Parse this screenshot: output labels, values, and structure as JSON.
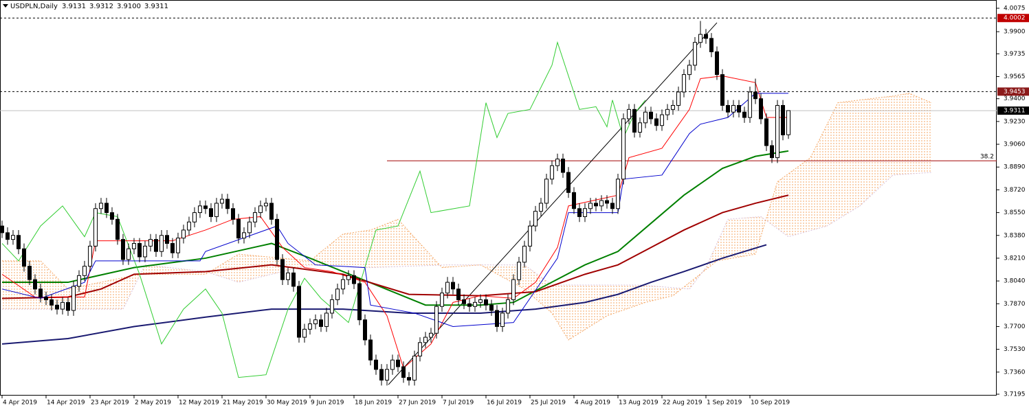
{
  "chart_data": {
    "type": "candlestick",
    "title": "USDPLN,Daily",
    "last_bar_labels": [
      "3.9131",
      "3.9312",
      "3.9100",
      "3.9311"
    ],
    "up_color": "#ffffff",
    "down_color": "#000000",
    "open": [
      3.845,
      3.84,
      3.835,
      3.838,
      3.828,
      3.815,
      3.805,
      3.798,
      3.792,
      3.79,
      3.786,
      3.783,
      3.788,
      3.782,
      3.8,
      3.808,
      3.815,
      3.83,
      3.858,
      3.862,
      3.855,
      3.85,
      3.835,
      3.82,
      3.828,
      3.832,
      3.822,
      3.83,
      3.835,
      3.826,
      3.838,
      3.832,
      3.825,
      3.836,
      3.842,
      3.848,
      3.855,
      3.86,
      3.858,
      3.852,
      3.862,
      3.865,
      3.858,
      3.85,
      3.836,
      3.84,
      3.848,
      3.855,
      3.86,
      3.862,
      3.85,
      3.82,
      3.805,
      3.81,
      3.8,
      3.762,
      3.768,
      3.772,
      3.775,
      3.77,
      3.78,
      3.79,
      3.798,
      3.805,
      3.808,
      3.802,
      3.775,
      3.76,
      3.745,
      3.738,
      3.73,
      3.738,
      3.745,
      3.74,
      3.732,
      3.73,
      3.748,
      3.758,
      3.762,
      3.765,
      3.785,
      3.795,
      3.803,
      3.798,
      3.79,
      3.787,
      3.785,
      3.788,
      3.79,
      3.786,
      3.782,
      3.77,
      3.78,
      3.79,
      3.805,
      3.818,
      3.83,
      3.845,
      3.856,
      3.862,
      3.88,
      3.89,
      3.895,
      3.885,
      3.87,
      3.858,
      3.852,
      3.858,
      3.862,
      3.86,
      3.864,
      3.862,
      3.858,
      3.88,
      3.925,
      3.932,
      3.915,
      3.922,
      3.93,
      3.925,
      3.92,
      3.928,
      3.932,
      3.935,
      3.945,
      3.958,
      3.965,
      3.982,
      3.988,
      3.985,
      3.975,
      3.958,
      3.935,
      3.93,
      3.935,
      3.93,
      3.926,
      3.945,
      3.94,
      3.925,
      3.905,
      3.896,
      3.935,
      3.9131
    ],
    "high": [
      3.849,
      3.844,
      3.842,
      3.842,
      3.832,
      3.819,
      3.809,
      3.802,
      3.796,
      3.794,
      3.79,
      3.792,
      3.792,
      3.804,
      3.812,
      3.819,
      3.834,
      3.862,
      3.866,
      3.866,
      3.859,
      3.854,
      3.839,
      3.832,
      3.836,
      3.836,
      3.834,
      3.839,
      3.839,
      3.842,
      3.842,
      3.836,
      3.84,
      3.846,
      3.852,
      3.859,
      3.864,
      3.864,
      3.862,
      3.866,
      3.869,
      3.869,
      3.862,
      3.854,
      3.844,
      3.852,
      3.859,
      3.864,
      3.866,
      3.866,
      3.854,
      3.824,
      3.814,
      3.814,
      3.804,
      3.772,
      3.776,
      3.779,
      3.779,
      3.784,
      3.794,
      3.802,
      3.809,
      3.812,
      3.812,
      3.806,
      3.779,
      3.764,
      3.749,
      3.742,
      3.742,
      3.749,
      3.749,
      3.744,
      3.736,
      3.752,
      3.762,
      3.766,
      3.769,
      3.789,
      3.799,
      3.807,
      3.807,
      3.802,
      3.794,
      3.791,
      3.792,
      3.794,
      3.794,
      3.79,
      3.786,
      3.784,
      3.794,
      3.809,
      3.822,
      3.834,
      3.849,
      3.86,
      3.866,
      3.884,
      3.894,
      3.899,
      3.899,
      3.889,
      3.874,
      3.862,
      3.862,
      3.866,
      3.866,
      3.868,
      3.868,
      3.866,
      3.884,
      3.929,
      3.936,
      3.936,
      3.926,
      3.934,
      3.934,
      3.929,
      3.932,
      3.936,
      3.939,
      3.949,
      3.962,
      3.969,
      3.986,
      3.998,
      3.992,
      3.989,
      3.979,
      3.962,
      3.939,
      3.939,
      3.939,
      3.934,
      3.949,
      3.955,
      3.944,
      3.929,
      3.909,
      3.939,
      3.939,
      3.9312
    ],
    "low": [
      3.836,
      3.831,
      3.831,
      3.824,
      3.811,
      3.801,
      3.794,
      3.788,
      3.786,
      3.782,
      3.779,
      3.779,
      3.778,
      3.778,
      3.796,
      3.804,
      3.811,
      3.826,
      3.854,
      3.851,
      3.846,
      3.831,
      3.816,
      3.816,
      3.824,
      3.818,
      3.818,
      3.826,
      3.822,
      3.822,
      3.828,
      3.821,
      3.821,
      3.832,
      3.838,
      3.844,
      3.851,
      3.854,
      3.848,
      3.848,
      3.858,
      3.854,
      3.846,
      3.832,
      3.832,
      3.836,
      3.844,
      3.851,
      3.856,
      3.846,
      3.816,
      3.801,
      3.801,
      3.796,
      3.758,
      3.758,
      3.764,
      3.768,
      3.766,
      3.766,
      3.776,
      3.786,
      3.794,
      3.801,
      3.798,
      3.771,
      3.756,
      3.741,
      3.734,
      3.726,
      3.726,
      3.734,
      3.736,
      3.728,
      3.726,
      3.726,
      3.744,
      3.754,
      3.758,
      3.761,
      3.781,
      3.791,
      3.794,
      3.786,
      3.783,
      3.781,
      3.781,
      3.784,
      3.782,
      3.778,
      3.766,
      3.766,
      3.776,
      3.786,
      3.801,
      3.814,
      3.826,
      3.841,
      3.852,
      3.858,
      3.876,
      3.886,
      3.881,
      3.866,
      3.854,
      3.848,
      3.848,
      3.854,
      3.856,
      3.856,
      3.858,
      3.854,
      3.854,
      3.876,
      3.921,
      3.911,
      3.911,
      3.918,
      3.921,
      3.916,
      3.916,
      3.924,
      3.928,
      3.931,
      3.941,
      3.954,
      3.961,
      3.978,
      3.981,
      3.971,
      3.954,
      3.931,
      3.926,
      3.926,
      3.926,
      3.922,
      3.922,
      3.936,
      3.921,
      3.901,
      3.892,
      3.892,
      3.909,
      3.91
    ],
    "close": [
      3.84,
      3.835,
      3.838,
      3.828,
      3.815,
      3.805,
      3.798,
      3.792,
      3.79,
      3.786,
      3.783,
      3.788,
      3.782,
      3.8,
      3.808,
      3.815,
      3.83,
      3.858,
      3.862,
      3.855,
      3.85,
      3.835,
      3.82,
      3.828,
      3.832,
      3.822,
      3.83,
      3.835,
      3.826,
      3.838,
      3.832,
      3.825,
      3.836,
      3.842,
      3.848,
      3.855,
      3.86,
      3.858,
      3.852,
      3.862,
      3.865,
      3.858,
      3.85,
      3.836,
      3.84,
      3.848,
      3.855,
      3.86,
      3.862,
      3.85,
      3.82,
      3.805,
      3.81,
      3.8,
      3.762,
      3.768,
      3.772,
      3.775,
      3.77,
      3.78,
      3.79,
      3.798,
      3.805,
      3.808,
      3.802,
      3.775,
      3.76,
      3.745,
      3.738,
      3.73,
      3.738,
      3.745,
      3.74,
      3.732,
      3.73,
      3.748,
      3.758,
      3.762,
      3.765,
      3.785,
      3.795,
      3.803,
      3.798,
      3.79,
      3.787,
      3.785,
      3.788,
      3.79,
      3.786,
      3.782,
      3.77,
      3.78,
      3.79,
      3.805,
      3.818,
      3.83,
      3.845,
      3.856,
      3.862,
      3.88,
      3.89,
      3.895,
      3.885,
      3.87,
      3.858,
      3.852,
      3.858,
      3.862,
      3.86,
      3.864,
      3.862,
      3.858,
      3.88,
      3.925,
      3.932,
      3.915,
      3.922,
      3.93,
      3.925,
      3.92,
      3.928,
      3.932,
      3.935,
      3.945,
      3.958,
      3.965,
      3.982,
      3.988,
      3.985,
      3.975,
      3.958,
      3.935,
      3.93,
      3.935,
      3.93,
      3.926,
      3.945,
      3.94,
      3.925,
      3.905,
      3.896,
      3.935,
      3.913,
      3.9311
    ],
    "lines": [
      {
        "color": "#008000",
        "width": 2,
        "x": [
          0,
          12,
          24,
          37,
          49,
          56,
          68,
          77,
          87,
          93,
          99,
          106,
          112,
          118,
          124,
          131,
          137,
          143
        ],
        "values": [
          3.803,
          3.803,
          3.814,
          3.821,
          3.832,
          3.821,
          3.801,
          3.786,
          3.786,
          3.788,
          3.801,
          3.816,
          3.826,
          3.847,
          3.868,
          3.888,
          3.897,
          3.901
        ]
      },
      {
        "color": "#a00000",
        "width": 2,
        "x": [
          0,
          12,
          18,
          24,
          37,
          49,
          62,
          74,
          87,
          97,
          106,
          112,
          118,
          124,
          131,
          137,
          143
        ],
        "values": [
          3.791,
          3.792,
          3.798,
          3.809,
          3.811,
          3.816,
          3.809,
          3.794,
          3.793,
          3.796,
          3.809,
          3.816,
          3.829,
          3.842,
          3.855,
          3.862,
          3.868
        ]
      },
      {
        "color": "#191970",
        "width": 2,
        "x": [
          0,
          12,
          24,
          37,
          49,
          62,
          74,
          87,
          97,
          106,
          112,
          118,
          124,
          131,
          139
        ],
        "values": [
          3.757,
          3.761,
          3.77,
          3.777,
          3.783,
          3.783,
          3.78,
          3.78,
          3.783,
          3.788,
          3.794,
          3.803,
          3.811,
          3.821,
          3.831
        ]
      },
      {
        "color": "#32cd32",
        "width": 1,
        "x": [
          0,
          3,
          7,
          11,
          15,
          17,
          21,
          25,
          29,
          33,
          37,
          40,
          43,
          48,
          52,
          55,
          58,
          63,
          68,
          72,
          76,
          78,
          85,
          88,
          90,
          92,
          96,
          100,
          101,
          105,
          108,
          110,
          111,
          113,
          115,
          117
        ],
        "values": [
          3.832,
          3.819,
          3.845,
          3.86,
          3.837,
          3.855,
          3.852,
          3.809,
          3.757,
          3.783,
          3.798,
          3.78,
          3.732,
          3.734,
          3.783,
          3.806,
          3.791,
          3.773,
          3.842,
          3.845,
          3.886,
          3.855,
          3.86,
          3.937,
          3.911,
          3.929,
          3.932,
          3.965,
          3.982,
          3.932,
          3.934,
          3.919,
          3.939,
          3.911,
          3.929,
          3.939
        ]
      },
      {
        "color": "#ff0000",
        "width": 1,
        "x": [
          0,
          6,
          15,
          17,
          31,
          37,
          42,
          47,
          51,
          55,
          60,
          66,
          70,
          73,
          78,
          82,
          87,
          93,
          97,
          101,
          103,
          112,
          114,
          120,
          125,
          127,
          131,
          137,
          139,
          143
        ],
        "values": [
          3.809,
          3.792,
          3.792,
          3.834,
          3.834,
          3.842,
          3.85,
          3.852,
          3.829,
          3.814,
          3.811,
          3.803,
          3.778,
          3.739,
          3.757,
          3.788,
          3.793,
          3.791,
          3.803,
          3.829,
          3.86,
          3.868,
          3.896,
          3.903,
          3.932,
          3.955,
          3.957,
          3.952,
          3.926,
          3.926
        ]
      },
      {
        "color": "#0000cd",
        "width": 1,
        "x": [
          0,
          7,
          15,
          17,
          36,
          37,
          50,
          52,
          57,
          66,
          67,
          75,
          82,
          93,
          101,
          103,
          112,
          113,
          120,
          125,
          127,
          132,
          137,
          143
        ],
        "values": [
          3.798,
          3.791,
          3.803,
          3.819,
          3.819,
          3.826,
          3.845,
          3.832,
          3.816,
          3.814,
          3.786,
          3.78,
          3.77,
          3.773,
          3.821,
          3.855,
          3.855,
          3.88,
          3.883,
          3.914,
          3.921,
          3.926,
          3.944,
          3.944
        ]
      }
    ],
    "cloud": {
      "color": "#f4a460",
      "span_a": {
        "color": "#f4a460",
        "x": [
          0,
          7,
          12,
          25,
          37,
          43,
          56,
          62,
          67,
          72,
          80,
          87,
          95,
          100,
          103,
          110,
          117,
          122,
          130,
          137,
          141,
          147,
          152,
          162,
          165,
          169
        ],
        "values": [
          3.819,
          3.819,
          3.798,
          3.809,
          3.809,
          3.824,
          3.819,
          3.839,
          3.842,
          3.85,
          3.814,
          3.816,
          3.798,
          3.78,
          3.76,
          3.778,
          3.788,
          3.793,
          3.819,
          3.824,
          3.878,
          3.896,
          3.937,
          3.942,
          3.944,
          3.937
        ]
      },
      "span_b": {
        "color": "#d8bfd8",
        "x": [
          0,
          12,
          22,
          26,
          37,
          43,
          56,
          67,
          81,
          95,
          100,
          116,
          125,
          128,
          132,
          138,
          143,
          150,
          156,
          162,
          169
        ],
        "values": [
          3.783,
          3.783,
          3.783,
          3.816,
          3.811,
          3.803,
          3.816,
          3.814,
          3.816,
          3.816,
          3.801,
          3.801,
          3.798,
          3.814,
          3.85,
          3.852,
          3.837,
          3.845,
          3.86,
          3.883,
          3.885
        ]
      }
    },
    "trendline": {
      "color": "#000000",
      "x": [
        70.25,
        130
      ],
      "values": [
        3.7266,
        3.9967
      ]
    },
    "fib": {
      "value": 3.8937,
      "label": "38.2",
      "x": 70,
      "color": "#a00000"
    },
    "hlines": [
      {
        "value": 4.0002,
        "color": "#000000",
        "tag_color": "#c00000",
        "dashed": true
      },
      {
        "value": 3.9453,
        "color": "#000000",
        "tag_color": "#8b1a1a",
        "dashed": true
      },
      {
        "value": 3.9311,
        "color": "#c0c0c0",
        "tag_color": "#000000",
        "dashed": false
      }
    ],
    "xlim": [
      -0.375,
      180.875
    ],
    "ylim": [
      3.7195,
      4.0075
    ],
    "yticks": [
      4.0075,
      {
        "value": 3.99,
        "label": "3.9900"
      },
      3.9735,
      3.9565,
      {
        "value": 3.94,
        "label": "3.9400"
      },
      {
        "value": 3.923,
        "label": "3.9230"
      },
      {
        "value": 3.906,
        "label": "3.9060"
      },
      {
        "value": 3.889,
        "label": "3.8890"
      },
      {
        "value": 3.872,
        "label": "3.8720"
      },
      {
        "value": 3.855,
        "label": "3.8550"
      },
      {
        "value": 3.838,
        "label": "3.8380"
      },
      {
        "value": 3.821,
        "label": "3.8210"
      },
      {
        "value": 3.804,
        "label": "3.8040"
      },
      {
        "value": 3.787,
        "label": "3.7870"
      },
      {
        "value": 3.77,
        "label": "3.7700"
      },
      {
        "value": 3.753,
        "label": "3.7530"
      },
      {
        "value": 3.736,
        "label": "3.7360"
      },
      3.7195
    ],
    "xticks": [
      {
        "value": 0,
        "label": "4 Apr 2019"
      },
      {
        "value": 8,
        "label": "14 Apr 2019"
      },
      {
        "value": 16,
        "label": "23 Apr 2019"
      },
      {
        "value": 24,
        "label": "2 May 2019"
      },
      {
        "value": 32,
        "label": "12 May 2019"
      },
      {
        "value": 40,
        "label": "21 May 2019"
      },
      {
        "value": 48,
        "label": "30 May 2019"
      },
      {
        "value": 56,
        "label": "9 Jun 2019"
      },
      {
        "value": 64,
        "label": "18 Jun 2019"
      },
      {
        "value": 72,
        "label": "27 Jun 2019"
      },
      {
        "value": 80,
        "label": "7 Jul 2019"
      },
      {
        "value": 88,
        "label": "16 Jul 2019"
      },
      {
        "value": 96,
        "label": "25 Jul 2019"
      },
      {
        "value": 104,
        "label": "4 Aug 2019"
      },
      {
        "value": 112,
        "label": "13 Aug 2019"
      },
      {
        "value": 120,
        "label": "22 Aug 2019"
      },
      {
        "value": 128,
        "label": "1 Sep 2019"
      },
      {
        "value": 136,
        "label": "10 Sep 2019"
      }
    ]
  }
}
